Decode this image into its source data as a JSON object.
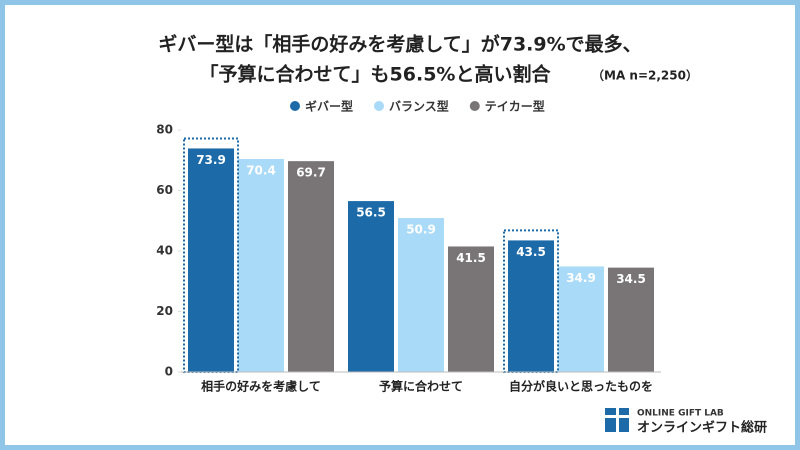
{
  "chart_data": {
    "type": "bar",
    "title": "ギバー型は「相手の好みを考慮して」が73.9%で最多、",
    "subtitle": "「予算に合わせて」も56.5%と高い割合",
    "note": "（MA n=2,250）",
    "categories": [
      "相手の好みを考慮して",
      "予算に合わせて",
      "自分が良いと思ったものを"
    ],
    "series": [
      {
        "name": "ギバー型",
        "color": "#1c6aa8",
        "values": [
          73.9,
          56.5,
          43.5
        ]
      },
      {
        "name": "バランス型",
        "color": "#a9daf7",
        "values": [
          70.4,
          50.9,
          34.9
        ]
      },
      {
        "name": "テイカー型",
        "color": "#797577",
        "values": [
          69.7,
          41.5,
          34.5
        ]
      }
    ],
    "highlighted_categories": [
      0,
      2
    ],
    "ylim": [
      0,
      80
    ],
    "yticks": [
      0,
      20,
      40,
      60,
      80
    ],
    "grid": false,
    "legend": "top"
  },
  "logo": {
    "line1": "ONLINE GIFT LAB",
    "line2": "オンラインギフト総研"
  }
}
